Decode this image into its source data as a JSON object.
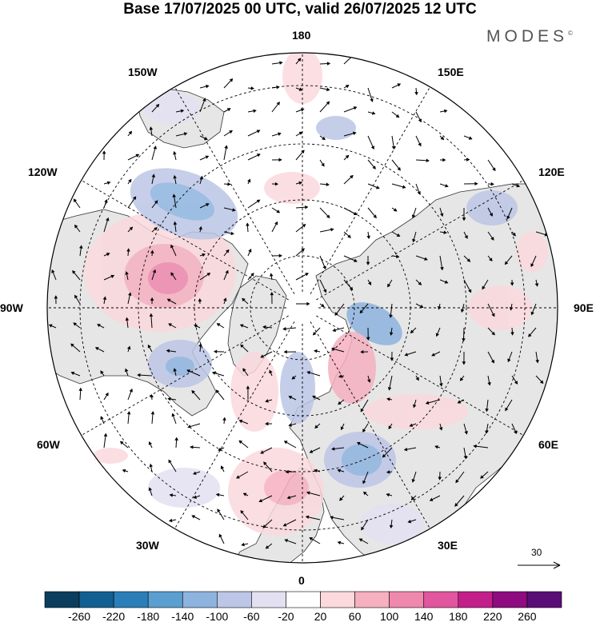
{
  "title": "Base 17/07/2025 00 UTC, valid 26/07/2025 12 UTC",
  "brand": "MODES",
  "brand_mark": "©",
  "map": {
    "projection": "north-polar-stereographic",
    "longitude_labels": [
      "180",
      "150E",
      "120E",
      "90E",
      "60E",
      "30E",
      "0",
      "30W",
      "60W",
      "90W",
      "120W",
      "150W"
    ],
    "graticule": "dashed",
    "land_fill": "#e6e6e6",
    "ocean_fill": "#ffffff"
  },
  "vector_scale": {
    "label": "30"
  },
  "colorbar": {
    "ticks": [
      "-260",
      "-220",
      "-180",
      "-140",
      "-100",
      "-60",
      "-20",
      "20",
      "60",
      "100",
      "140",
      "180",
      "220",
      "260"
    ],
    "colors": [
      "#0b3d5e",
      "#125f92",
      "#2a7fb8",
      "#5a9fd0",
      "#8db3df",
      "#bcc6e6",
      "#e3e1f1",
      "#ffffff",
      "#fbd9dd",
      "#f6b0c0",
      "#ef88ad",
      "#e1569e",
      "#c31f8a",
      "#8e0b80",
      "#5a0d77"
    ]
  },
  "anomalies": [
    {
      "name": "alaska-positive",
      "level": 140,
      "color": "#ef88ad"
    },
    {
      "name": "siberia-negative",
      "level": -100,
      "color": "#8db3df"
    },
    {
      "name": "hudson-negative",
      "level": -100,
      "color": "#8db3df"
    },
    {
      "name": "greenland-negative",
      "level": -60,
      "color": "#bcc6e6"
    },
    {
      "name": "scandinavia-negative",
      "level": -100,
      "color": "#8db3df"
    },
    {
      "name": "atlantic-positive",
      "level": 60,
      "color": "#fbd9dd"
    }
  ]
}
